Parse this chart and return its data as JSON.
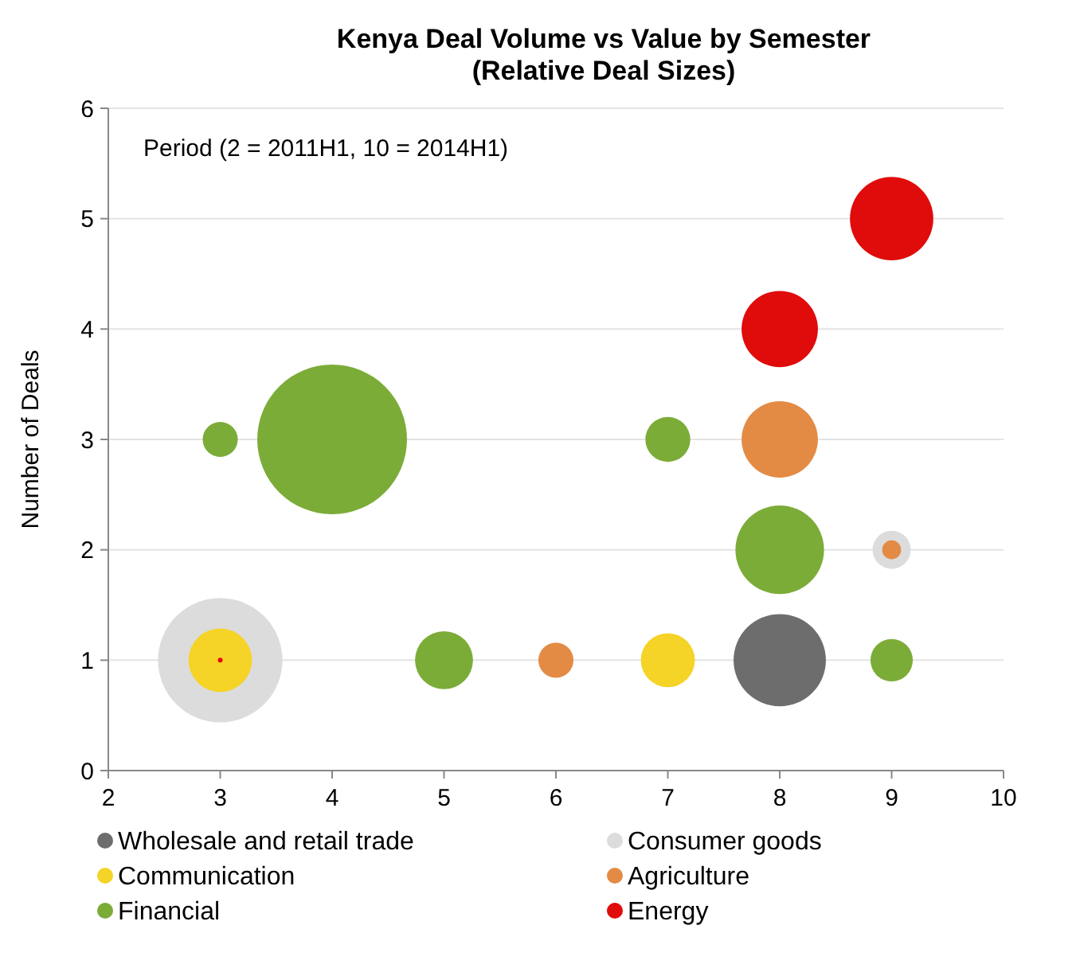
{
  "chart_data": {
    "type": "bubble",
    "title": "Kenya Deal Volume vs Value by Semester",
    "subtitle": "(Relative Deal Sizes)",
    "ylabel": "Number of Deals",
    "xlim": [
      2,
      10
    ],
    "xticks": [
      2,
      3,
      4,
      5,
      6,
      7,
      8,
      9,
      10
    ],
    "ylim": [
      0,
      6
    ],
    "yticks": [
      0,
      1,
      2,
      3,
      4,
      5,
      6
    ],
    "grid": "y",
    "legend": "bottom",
    "annotations": [
      "Period (2 = 2011H1,  10 = 2014H1)"
    ],
    "series": [
      {
        "name": "Wholesale and retail trade",
        "color": "#6d6d6d",
        "x": [
          8
        ],
        "values": [
          1
        ],
        "sizes": [
          0.38
        ]
      },
      {
        "name": "Consumer goods",
        "color": "#dcdcdc",
        "x": [
          3,
          9
        ],
        "values": [
          1,
          2
        ],
        "sizes": [
          0.69,
          0.065
        ]
      },
      {
        "name": "Communication",
        "color": "#f5d327",
        "x": [
          3,
          7
        ],
        "values": [
          1,
          1
        ],
        "sizes": [
          0.18,
          0.13
        ]
      },
      {
        "name": "Agriculture",
        "color": "#e38b45",
        "x": [
          6,
          8,
          9
        ],
        "values": [
          1,
          3,
          2
        ],
        "sizes": [
          0.055,
          0.26,
          0.016
        ]
      },
      {
        "name": "Financial",
        "color": "#7cac38",
        "x": [
          3,
          4,
          5,
          7,
          8,
          9
        ],
        "values": [
          3,
          3,
          1,
          3,
          2,
          1
        ],
        "sizes": [
          0.055,
          1,
          0.15,
          0.09,
          0.35,
          0.08
        ]
      },
      {
        "name": "Energy",
        "color": "#e00b0b",
        "x": [
          3,
          8,
          9
        ],
        "values": [
          1,
          4,
          5
        ],
        "sizes": [
          0.001,
          0.26,
          0.31
        ]
      }
    ]
  }
}
